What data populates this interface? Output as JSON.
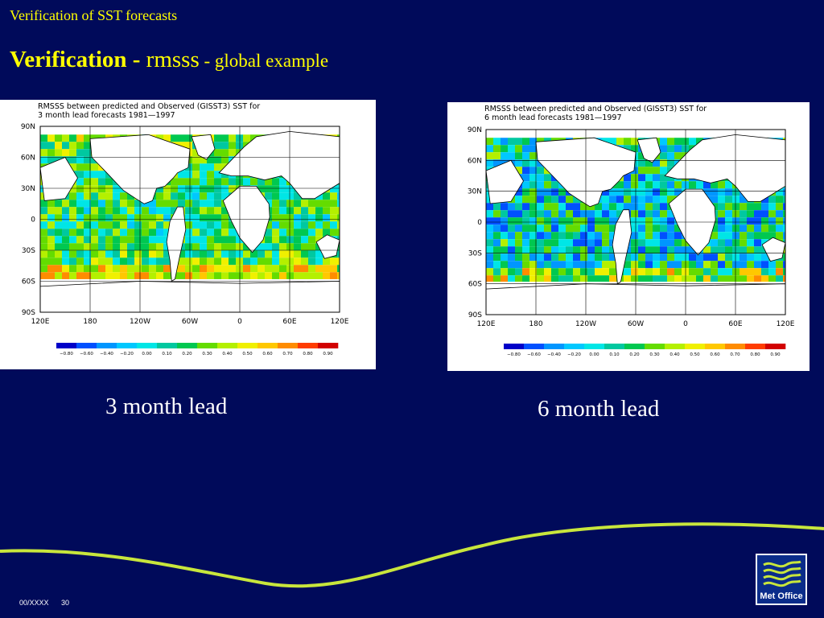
{
  "header": {
    "text": "Verification of SST forecasts"
  },
  "title": {
    "bold": "Verification - ",
    "mid": "rmsss",
    "small": " - global example"
  },
  "maps": [
    {
      "title_line1": "RMSSS between predicted and Observed (GISST3) SST for",
      "title_line2": "3 month lead forecasts 1981—1997",
      "caption": "3 month lead"
    },
    {
      "title_line1": "RMSSS between predicted and Observed (GISST3) SST for",
      "title_line2": "6 month lead forecasts 1981—1997",
      "caption": "6 month lead"
    }
  ],
  "map_axes": {
    "lat_labels": [
      "90N",
      "60N",
      "30N",
      "0",
      "30S",
      "60S",
      "90S"
    ],
    "lon_labels": [
      "120E",
      "180",
      "120W",
      "60W",
      "0",
      "60E",
      "120E"
    ]
  },
  "colorbar": {
    "labels": [
      "−0.80",
      "−0.60",
      "−0.40",
      "−0.20",
      "0.00",
      "0.10",
      "0.20",
      "0.30",
      "0.40",
      "0.50",
      "0.60",
      "0.70",
      "0.80",
      "0.90"
    ],
    "colors": [
      "#0000c8",
      "#0050ff",
      "#0096ff",
      "#00c8ff",
      "#00e6e6",
      "#00c8a0",
      "#00c850",
      "#64dc00",
      "#b4f000",
      "#f0f000",
      "#ffc800",
      "#ff8c00",
      "#ff3c00",
      "#d20000"
    ]
  },
  "footer": {
    "code": "00/XXXX",
    "page": "30"
  },
  "logo": {
    "label": "Met Office"
  },
  "colors": {
    "background": "#000a5a",
    "accent_yellow": "#ffff00",
    "swoosh": "#c8e63c"
  }
}
